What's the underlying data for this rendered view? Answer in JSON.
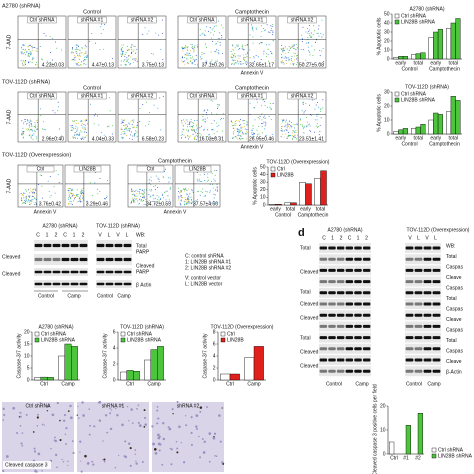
{
  "flow": {
    "a2780": {
      "title": "A2780 (shRNA)",
      "headers": [
        "Control",
        "Camptothecin"
      ],
      "panels": [
        "Ctrl shRNA",
        "shRNA #1",
        "shRNA #2",
        "Ctrl shRNA",
        "shRNA #1",
        "shRNA #2"
      ],
      "stats": [
        "4.23±0.03",
        "4.47±0.13",
        "3.75±0.13",
        "37.1±0.26",
        "32.65±1.17",
        "50.27±5.08"
      ],
      "y_label": "7-AAD",
      "x_label": "Annexin V"
    },
    "tov_sh": {
      "title": "TOV-112D (shRNA)",
      "headers": [
        "Control",
        "Camptothecin"
      ],
      "panels": [
        "Ctrl shRNA",
        "shRNA #1",
        "shRNA #2",
        "Ctrl shRNA",
        "shRNA #1",
        "shRNA #2"
      ],
      "stats": [
        "2.96±0.40",
        "4.04±0.33",
        "6.58±0.23",
        "16.03±0.31",
        "26.95±0.46",
        "23.51±1.41"
      ],
      "y_label": "7-AAD",
      "x_label": "Annexin V"
    },
    "tov_oe": {
      "title": "TOV-112D (Overexpression)",
      "headers": [
        "Camptothecin"
      ],
      "panels": [
        "Ctrl",
        "LIN28B",
        "Ctrl",
        "LIN28B"
      ],
      "stats": [
        "3.76±0.42",
        "3.29±0.46",
        "34.72±0.55",
        "37.57±4.60"
      ],
      "y_label": "7-AAD",
      "x_label": "Annexin V"
    }
  },
  "chart_data": [
    {
      "type": "bar",
      "title": "A2780 (shRNA)",
      "y_label": "% Apoptotic cells",
      "categories": [
        "early",
        "total",
        "early",
        "total"
      ],
      "x_groups": [
        "Control",
        "Camptothecin"
      ],
      "series": [
        {
          "name": "Ctrl shRNA",
          "color": "#ffffff",
          "values": [
            2,
            5,
            24,
            34
          ]
        },
        {
          "name": "LIN28B shRNA",
          "color": "#4cc43c",
          "values": [
            3,
            6,
            30,
            40
          ]
        },
        {
          "color": "#4cc43c",
          "values": [
            3,
            7,
            33,
            45
          ]
        }
      ],
      "ylim": [
        0,
        50
      ],
      "yticks": [
        0,
        10,
        20,
        30,
        40,
        50
      ],
      "legend": "upper left"
    },
    {
      "type": "bar",
      "title": "TOV-112D (shRNA)",
      "y_label": "% Apoptotic cells",
      "categories": [
        "early",
        "total",
        "early",
        "total"
      ],
      "x_groups": [
        "Control",
        "Camptothecin"
      ],
      "series": [
        {
          "name": "Ctrl shRNA",
          "color": "#ffffff",
          "values": [
            2,
            4,
            10,
            16
          ]
        },
        {
          "name": "LIN28B shRNA",
          "color": "#4cc43c",
          "values": [
            3,
            5,
            15,
            27
          ]
        },
        {
          "color": "#4cc43c",
          "values": [
            4,
            7,
            14,
            24
          ]
        }
      ],
      "ylim": [
        0,
        30
      ],
      "yticks": [
        0,
        10,
        20,
        30
      ],
      "legend": "upper left"
    },
    {
      "type": "bar",
      "title": "TOV-112D (Overexpression)",
      "y_label": "% Apoptotic cells",
      "categories": [
        "early",
        "total",
        "early",
        "total"
      ],
      "x_groups": [
        "Control",
        "Camptothecin"
      ],
      "series": [
        {
          "name": "Ctrl",
          "color": "#ffffff",
          "values": [
            1,
            3,
            30,
            35
          ]
        },
        {
          "name": "LIN28B",
          "color": "#e0201c",
          "values": [
            1,
            3,
            28,
            45
          ]
        }
      ],
      "ylim": [
        0,
        50
      ],
      "yticks": [
        0,
        10,
        20,
        30,
        40,
        50
      ],
      "legend": "upper left"
    },
    {
      "type": "bar",
      "title": "A2780 (shRNA)",
      "y_label": "Caspase-3/7 activity",
      "categories": [
        "Ctrl",
        "Camp"
      ],
      "series": [
        {
          "name": "Ctrl shRNA",
          "color": "#ffffff",
          "values": [
            1,
            10
          ]
        },
        {
          "name": "LIN28B shRNA",
          "color": "#4cc43c",
          "values": [
            1.2,
            15
          ]
        },
        {
          "color": "#4cc43c",
          "values": [
            1.1,
            14
          ]
        }
      ],
      "ylim": [
        0,
        20
      ],
      "yticks": [
        0,
        5,
        10,
        15,
        20
      ],
      "legend": "upper left"
    },
    {
      "type": "bar",
      "title": "TOV-112D (shRNA)",
      "y_label": "Caspase-3/7 activity",
      "categories": [
        "Ctrl",
        "Camp"
      ],
      "series": [
        {
          "name": "Ctrl shRNA",
          "color": "#ffffff",
          "values": [
            1,
            2.5
          ]
        },
        {
          "name": "LIN28B shRNA",
          "color": "#4cc43c",
          "values": [
            1.2,
            3.8
          ]
        },
        {
          "color": "#4cc43c",
          "values": [
            1.1,
            4.2
          ]
        }
      ],
      "ylim": [
        0,
        6
      ],
      "yticks": [
        0,
        2,
        4,
        6
      ],
      "legend": "upper left"
    },
    {
      "type": "bar",
      "title": "TOV-112D (Overexpression)",
      "y_label": "Caspase-3/7 activity",
      "categories": [
        "Ctrl",
        "Camp"
      ],
      "series": [
        {
          "name": "Ctrl",
          "color": "#ffffff",
          "values": [
            1,
            3.7
          ]
        },
        {
          "name": "LIN28B",
          "color": "#e0201c",
          "values": [
            1,
            5.6
          ]
        }
      ],
      "ylim": [
        0,
        8
      ],
      "yticks": [
        0,
        2,
        4,
        6,
        8
      ],
      "legend": "upper left"
    },
    {
      "type": "bar",
      "y_label": "Cleaved caspase 3 positive cells per field",
      "categories": [
        "Ctrl",
        "#1",
        "#2"
      ],
      "series": [
        {
          "name": "Ctrl shRNA",
          "color": "#ffffff",
          "values": [
            5,
            null,
            null
          ]
        },
        {
          "name": "LIN28B shRNA",
          "color": "#4cc43c",
          "values": [
            null,
            12,
            17
          ]
        }
      ],
      "ylim": [
        0,
        20
      ],
      "yticks": [
        0,
        10,
        20
      ],
      "legend": "outside right"
    }
  ],
  "blot_c": {
    "titles": [
      "A2780 (shRNA)",
      "TOV-112D (shRNA)"
    ],
    "lanes": [
      "C",
      "1",
      "2",
      "C",
      "1",
      "2",
      "V",
      "L",
      "V",
      "L"
    ],
    "left_labels": [
      "Cleaved",
      "Cleaved"
    ],
    "right_labels": [
      "WB:",
      "Total",
      "PARP",
      "Cleaved",
      "PARP",
      "β Actin"
    ],
    "key": [
      "C: control shRNA",
      "1: LIN28B shRNA #1",
      "2: LIN28B shRNA #2",
      "V: control vector",
      "L: LIN28B vector"
    ],
    "conditions": [
      "Control",
      "Camp",
      "Control",
      "Camp"
    ]
  },
  "blot_d": {
    "letter": "d",
    "titles": [
      "A2780 (shRNA)",
      "TOV-112D (Overexpression)"
    ],
    "lanes": [
      "C",
      "1",
      "2",
      "C",
      "1",
      "2",
      "V",
      "L",
      "V",
      "L"
    ],
    "left_labels": [
      "Total",
      "Cleaved",
      "Total",
      "Cleaved",
      "Cleaved",
      "Total",
      "Cleaved",
      "Cleaved"
    ],
    "right_labels": [
      "WB:",
      "Total",
      "Caspas",
      "Cleave",
      "Caspas",
      "Total",
      "Caspas",
      "Cleave",
      "Caspas",
      "Total",
      "Caspas",
      "Cleave",
      "β-Actin"
    ],
    "conditions": [
      "Control",
      "Camp",
      "Control",
      "Camp"
    ]
  },
  "ihc": {
    "panels": [
      "Ctrl shRNA",
      "shRNA #1",
      "shRNA #2"
    ],
    "stain": "Cleaved caspase 3"
  }
}
